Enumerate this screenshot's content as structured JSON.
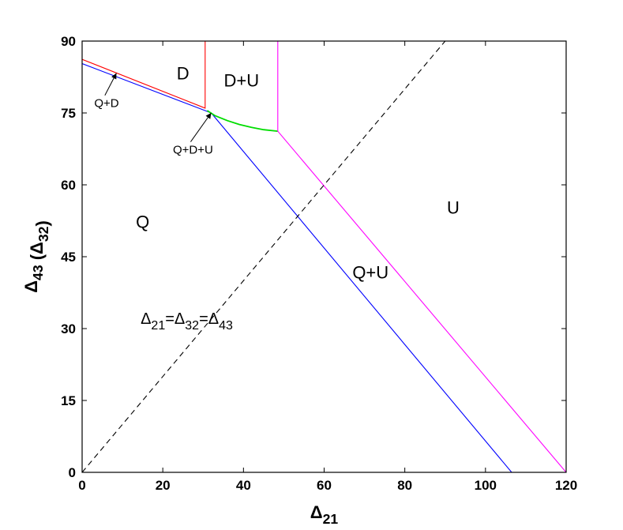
{
  "chart_data": {
    "type": "line",
    "xlabel": "Δ21",
    "ylabel": "Δ43 (Δ32)",
    "xlim": [
      0,
      120
    ],
    "ylim": [
      0,
      90
    ],
    "xticks": [
      0,
      20,
      40,
      60,
      80,
      100,
      120
    ],
    "yticks": [
      0,
      15,
      30,
      45,
      60,
      75,
      90
    ],
    "grid": false,
    "series": [
      {
        "color": "#ff0000",
        "style": "solid",
        "points": [
          [
            0,
            86.2
          ],
          [
            30.5,
            76.0
          ],
          [
            30.5,
            90
          ]
        ]
      },
      {
        "color": "#0000ff",
        "style": "solid",
        "points": [
          [
            0,
            85.3
          ],
          [
            32,
            75
          ],
          [
            106.5,
            0
          ]
        ]
      },
      {
        "color": "#00dd00",
        "style": "solid",
        "points": [
          [
            31,
            75.5
          ],
          [
            33,
            74.4
          ],
          [
            36,
            73.4
          ],
          [
            39,
            72.6
          ],
          [
            42,
            72.0
          ],
          [
            45,
            71.5
          ],
          [
            48.5,
            71.2
          ]
        ]
      },
      {
        "color": "#ff00ff",
        "style": "solid",
        "points": [
          [
            48.5,
            90
          ],
          [
            48.5,
            71.2
          ],
          [
            120,
            0
          ]
        ]
      },
      {
        "color": "#000000",
        "style": "dashed",
        "points": [
          [
            0,
            0
          ],
          [
            90,
            90
          ]
        ]
      }
    ],
    "region_labels": [
      {
        "text": "D",
        "x": 25,
        "y": 82
      },
      {
        "text": "D+U",
        "x": 39.5,
        "y": 80.5
      },
      {
        "text": "Q",
        "x": 15,
        "y": 51
      },
      {
        "text": "U",
        "x": 92,
        "y": 54
      },
      {
        "text": "Q+U",
        "x": 71.5,
        "y": 40.5
      }
    ],
    "annotations": [
      {
        "text": "Q+D",
        "x": 3,
        "y": 76.2,
        "arrow_to": [
          8.5,
          83.3
        ]
      },
      {
        "text": "Q+D+U",
        "x": 22.5,
        "y": 66.5,
        "arrow_to": [
          32,
          75
        ]
      }
    ],
    "equality_label": {
      "parts": [
        "Δ",
        "21",
        "=Δ",
        "32",
        "=Δ",
        "43"
      ],
      "x": 14.5,
      "y": 31
    }
  }
}
